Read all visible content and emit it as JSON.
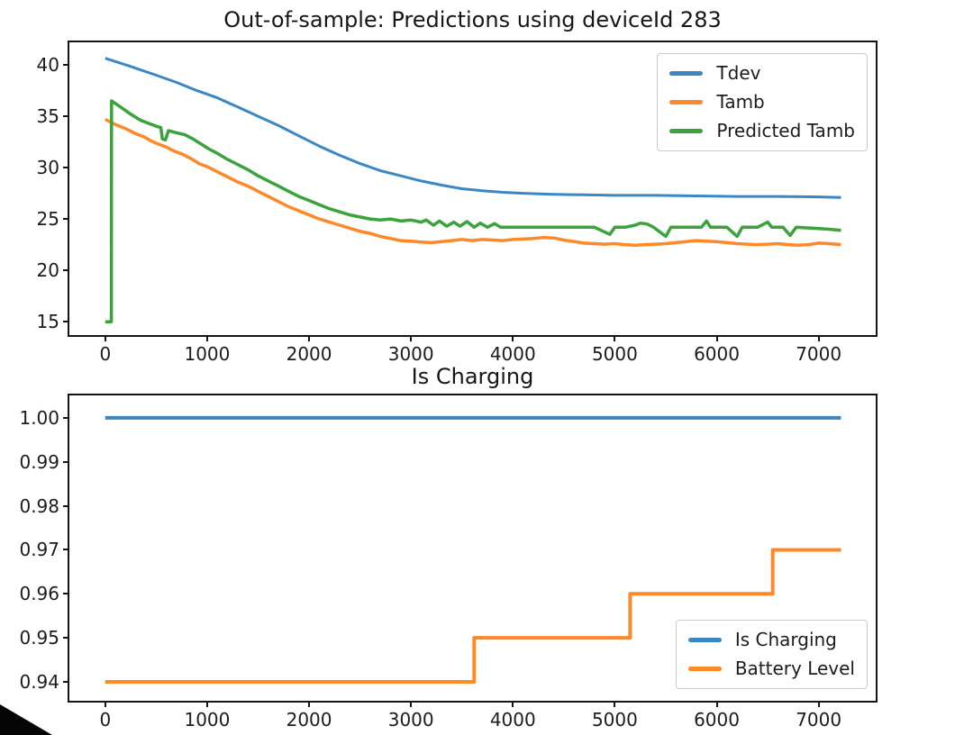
{
  "titles": {
    "main": "Out-of-sample: Predictions using deviceId 283",
    "subplot2": "Is Charging"
  },
  "colors": {
    "blue": "#3b87c4",
    "orange": "#ff8828",
    "green": "#3aa33c",
    "axis": "#141414",
    "text": "#1c1c1c"
  },
  "chart_data": [
    {
      "type": "line",
      "title": "Out-of-sample: Predictions using deviceId 283",
      "xlabel": "",
      "ylabel": "",
      "grid": false,
      "xlim": [
        -352,
        7560
      ],
      "ylim": [
        13.7,
        42.2
      ],
      "x_ticks": [
        {
          "v": 0,
          "label": "0"
        },
        {
          "v": 1000,
          "label": "1000"
        },
        {
          "v": 2000,
          "label": "2000"
        },
        {
          "v": 3000,
          "label": "3000"
        },
        {
          "v": 4000,
          "label": "4000"
        },
        {
          "v": 5000,
          "label": "5000"
        },
        {
          "v": 6000,
          "label": "6000"
        },
        {
          "v": 7000,
          "label": "7000"
        }
      ],
      "y_ticks": [
        {
          "v": 40,
          "label": "40"
        },
        {
          "v": 35,
          "label": "35"
        },
        {
          "v": 30,
          "label": "30"
        },
        {
          "v": 25,
          "label": "25"
        },
        {
          "v": 20,
          "label": "20"
        },
        {
          "v": 15,
          "label": "15"
        }
      ],
      "legend": {
        "position": "upper right",
        "entries": [
          {
            "label": "Tdev",
            "color": "#3b87c4"
          },
          {
            "label": "Tamb",
            "color": "#ff8828"
          },
          {
            "label": "Predicted Tamb",
            "color": "#3aa33c"
          }
        ]
      },
      "series": [
        {
          "name": "Tdev",
          "color": "#3b87c4",
          "width": 3,
          "points": [
            [
              0,
              40.65
            ],
            [
              250,
              39.85
            ],
            [
              500,
              39.0
            ],
            [
              700,
              38.3
            ],
            [
              900,
              37.5
            ],
            [
              1100,
              36.8
            ],
            [
              1300,
              35.9
            ],
            [
              1500,
              35.0
            ],
            [
              1700,
              34.1
            ],
            [
              1900,
              33.1
            ],
            [
              2100,
              32.1
            ],
            [
              2300,
              31.2
            ],
            [
              2500,
              30.4
            ],
            [
              2700,
              29.7
            ],
            [
              2900,
              29.2
            ],
            [
              3100,
              28.7
            ],
            [
              3300,
              28.3
            ],
            [
              3500,
              27.95
            ],
            [
              3700,
              27.75
            ],
            [
              3900,
              27.6
            ],
            [
              4100,
              27.5
            ],
            [
              4400,
              27.4
            ],
            [
              4700,
              27.35
            ],
            [
              5000,
              27.3
            ],
            [
              5400,
              27.3
            ],
            [
              5800,
              27.25
            ],
            [
              6200,
              27.2
            ],
            [
              6600,
              27.2
            ],
            [
              7000,
              27.15
            ],
            [
              7220,
              27.1
            ]
          ]
        },
        {
          "name": "Tamb",
          "color": "#ff8828",
          "width": 3.5,
          "points": [
            [
              0,
              34.7
            ],
            [
              100,
              34.2
            ],
            [
              200,
              33.8
            ],
            [
              300,
              33.3
            ],
            [
              380,
              33.0
            ],
            [
              450,
              32.6
            ],
            [
              520,
              32.3
            ],
            [
              600,
              32.0
            ],
            [
              680,
              31.6
            ],
            [
              760,
              31.3
            ],
            [
              840,
              30.9
            ],
            [
              920,
              30.4
            ],
            [
              1000,
              30.1
            ],
            [
              1100,
              29.6
            ],
            [
              1200,
              29.1
            ],
            [
              1300,
              28.6
            ],
            [
              1400,
              28.2
            ],
            [
              1500,
              27.7
            ],
            [
              1600,
              27.2
            ],
            [
              1700,
              26.7
            ],
            [
              1800,
              26.2
            ],
            [
              1900,
              25.8
            ],
            [
              2000,
              25.4
            ],
            [
              2100,
              25.0
            ],
            [
              2200,
              24.7
            ],
            [
              2300,
              24.4
            ],
            [
              2400,
              24.1
            ],
            [
              2500,
              23.8
            ],
            [
              2600,
              23.6
            ],
            [
              2700,
              23.3
            ],
            [
              2800,
              23.1
            ],
            [
              2900,
              22.9
            ],
            [
              3000,
              22.85
            ],
            [
              3100,
              22.75
            ],
            [
              3200,
              22.7
            ],
            [
              3300,
              22.8
            ],
            [
              3400,
              22.9
            ],
            [
              3500,
              23.0
            ],
            [
              3600,
              22.9
            ],
            [
              3700,
              23.0
            ],
            [
              3800,
              22.95
            ],
            [
              3900,
              22.9
            ],
            [
              4000,
              23.0
            ],
            [
              4100,
              23.05
            ],
            [
              4200,
              23.1
            ],
            [
              4300,
              23.2
            ],
            [
              4400,
              23.15
            ],
            [
              4500,
              22.95
            ],
            [
              4600,
              22.8
            ],
            [
              4700,
              22.65
            ],
            [
              4800,
              22.6
            ],
            [
              4900,
              22.55
            ],
            [
              5000,
              22.6
            ],
            [
              5100,
              22.5
            ],
            [
              5200,
              22.45
            ],
            [
              5300,
              22.5
            ],
            [
              5400,
              22.55
            ],
            [
              5500,
              22.6
            ],
            [
              5600,
              22.7
            ],
            [
              5700,
              22.8
            ],
            [
              5800,
              22.9
            ],
            [
              5900,
              22.85
            ],
            [
              6000,
              22.8
            ],
            [
              6100,
              22.7
            ],
            [
              6200,
              22.6
            ],
            [
              6300,
              22.55
            ],
            [
              6400,
              22.5
            ],
            [
              6500,
              22.55
            ],
            [
              6600,
              22.6
            ],
            [
              6700,
              22.5
            ],
            [
              6800,
              22.45
            ],
            [
              6900,
              22.5
            ],
            [
              7000,
              22.65
            ],
            [
              7100,
              22.6
            ],
            [
              7220,
              22.5
            ]
          ]
        },
        {
          "name": "Predicted Tamb",
          "color": "#3aa33c",
          "width": 3.5,
          "points": [
            [
              0,
              15.0
            ],
            [
              60,
              15.0
            ],
            [
              62,
              36.5
            ],
            [
              150,
              35.9
            ],
            [
              250,
              35.2
            ],
            [
              350,
              34.6
            ],
            [
              430,
              34.3
            ],
            [
              510,
              34.0
            ],
            [
              545,
              33.9
            ],
            [
              560,
              32.8
            ],
            [
              590,
              32.7
            ],
            [
              620,
              33.6
            ],
            [
              700,
              33.4
            ],
            [
              780,
              33.2
            ],
            [
              860,
              32.8
            ],
            [
              940,
              32.3
            ],
            [
              1020,
              31.8
            ],
            [
              1100,
              31.4
            ],
            [
              1200,
              30.8
            ],
            [
              1300,
              30.3
            ],
            [
              1400,
              29.8
            ],
            [
              1500,
              29.2
            ],
            [
              1600,
              28.7
            ],
            [
              1700,
              28.2
            ],
            [
              1800,
              27.7
            ],
            [
              1900,
              27.2
            ],
            [
              2000,
              26.8
            ],
            [
              2100,
              26.4
            ],
            [
              2200,
              26.0
            ],
            [
              2300,
              25.7
            ],
            [
              2400,
              25.4
            ],
            [
              2500,
              25.2
            ],
            [
              2600,
              25.0
            ],
            [
              2700,
              24.9
            ],
            [
              2800,
              25.0
            ],
            [
              2900,
              24.8
            ],
            [
              3000,
              24.9
            ],
            [
              3100,
              24.7
            ],
            [
              3150,
              24.9
            ],
            [
              3220,
              24.4
            ],
            [
              3280,
              24.8
            ],
            [
              3350,
              24.3
            ],
            [
              3420,
              24.7
            ],
            [
              3480,
              24.3
            ],
            [
              3550,
              24.75
            ],
            [
              3620,
              24.2
            ],
            [
              3680,
              24.6
            ],
            [
              3750,
              24.2
            ],
            [
              3820,
              24.55
            ],
            [
              3880,
              24.2
            ],
            [
              3950,
              24.2
            ],
            [
              4050,
              24.2
            ],
            [
              4150,
              24.2
            ],
            [
              4250,
              24.2
            ],
            [
              4350,
              24.2
            ],
            [
              4500,
              24.2
            ],
            [
              4650,
              24.2
            ],
            [
              4800,
              24.2
            ],
            [
              4950,
              23.5
            ],
            [
              5000,
              24.2
            ],
            [
              5100,
              24.2
            ],
            [
              5200,
              24.4
            ],
            [
              5250,
              24.6
            ],
            [
              5320,
              24.5
            ],
            [
              5380,
              24.2
            ],
            [
              5500,
              23.3
            ],
            [
              5550,
              24.2
            ],
            [
              5700,
              24.2
            ],
            [
              5850,
              24.2
            ],
            [
              5900,
              24.8
            ],
            [
              5940,
              24.2
            ],
            [
              6100,
              24.2
            ],
            [
              6200,
              23.3
            ],
            [
              6250,
              24.2
            ],
            [
              6400,
              24.2
            ],
            [
              6500,
              24.7
            ],
            [
              6540,
              24.2
            ],
            [
              6650,
              24.2
            ],
            [
              6720,
              23.4
            ],
            [
              6780,
              24.2
            ],
            [
              6950,
              24.1
            ],
            [
              7100,
              24.0
            ],
            [
              7220,
              23.9
            ]
          ]
        }
      ]
    },
    {
      "type": "line",
      "title": "Is Charging",
      "xlabel": "",
      "ylabel": "",
      "grid": false,
      "xlim": [
        -352,
        7560
      ],
      "ylim": [
        0.9357,
        1.0051
      ],
      "x_ticks": [
        {
          "v": 0,
          "label": "0"
        },
        {
          "v": 1000,
          "label": "1000"
        },
        {
          "v": 2000,
          "label": "2000"
        },
        {
          "v": 3000,
          "label": "3000"
        },
        {
          "v": 4000,
          "label": "4000"
        },
        {
          "v": 5000,
          "label": "5000"
        },
        {
          "v": 6000,
          "label": "6000"
        },
        {
          "v": 7000,
          "label": "7000"
        }
      ],
      "y_ticks": [
        {
          "v": 1.0,
          "label": "1.00"
        },
        {
          "v": 0.99,
          "label": "0.99"
        },
        {
          "v": 0.98,
          "label": "0.98"
        },
        {
          "v": 0.97,
          "label": "0.97"
        },
        {
          "v": 0.96,
          "label": "0.96"
        },
        {
          "v": 0.95,
          "label": "0.95"
        },
        {
          "v": 0.94,
          "label": "0.94"
        }
      ],
      "legend": {
        "position": "lower right",
        "entries": [
          {
            "label": "Is Charging",
            "color": "#3b87c4"
          },
          {
            "label": "Battery Level",
            "color": "#ff8828"
          }
        ]
      },
      "series": [
        {
          "name": "Is Charging",
          "color": "#3b87c4",
          "width": 4,
          "points": [
            [
              0,
              1.0
            ],
            [
              7220,
              1.0
            ]
          ]
        },
        {
          "name": "Battery Level",
          "color": "#ff8828",
          "width": 4,
          "points": [
            [
              0,
              0.94
            ],
            [
              3620,
              0.94
            ],
            [
              3620,
              0.95
            ],
            [
              5150,
              0.95
            ],
            [
              5150,
              0.96
            ],
            [
              6550,
              0.96
            ],
            [
              6550,
              0.97
            ],
            [
              7220,
              0.97
            ]
          ]
        }
      ]
    }
  ]
}
